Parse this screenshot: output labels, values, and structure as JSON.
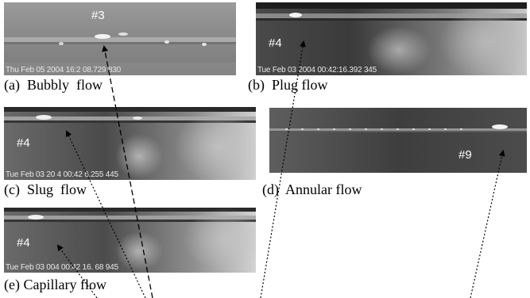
{
  "panels": {
    "a": {
      "tag": "#3",
      "stamp": "Thu Feb 05 2004 16:2 08.729 830",
      "caption": "(a)  Bubbly  flow"
    },
    "b": {
      "tag": "#4",
      "stamp": "Tue Feb 03 2004 00:42:16.392 345",
      "caption": "(b)  Plug flow"
    },
    "c": {
      "tag": "#4",
      "stamp": "Tue Feb 03 20 4 00:42 6.255 445",
      "caption": "(c)  Slug  flow"
    },
    "d": {
      "tag": "#9",
      "stamp": "",
      "caption": "(d)  Annular flow"
    },
    "e": {
      "tag": "#4",
      "stamp": "Tue Feb 03 004 00:42 16. 68 945",
      "caption": "(e) Capillary flow"
    }
  }
}
